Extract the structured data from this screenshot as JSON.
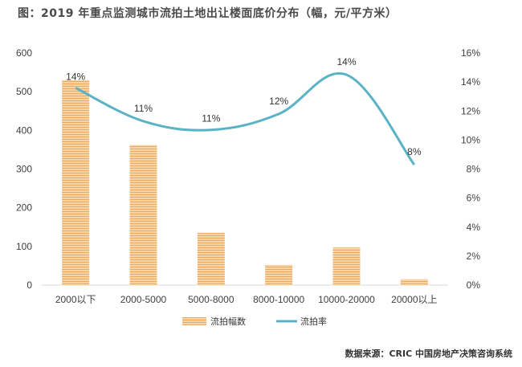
{
  "title": "图：2019 年重点监测城市流拍土地出让楼面底价分布（幅，元/平方米）",
  "source": "数据来源：CRIC 中国房地产决策咨询系统",
  "colors": {
    "bar": "#f5c58d",
    "bar_stripe": "#e0a25c",
    "line": "#5ab3c4",
    "axis_text": "#404040"
  },
  "chart_data": {
    "type": "bar",
    "title": "图：2019 年重点监测城市流拍土地出让楼面底价分布（幅，元/平方米）",
    "categories": [
      "2000以下",
      "2000-5000",
      "5000-8000",
      "8000-10000",
      "10000-20000",
      "20000以上"
    ],
    "series": [
      {
        "name": "流拍幅数",
        "type": "bar",
        "axis": "left",
        "values": [
          530,
          362,
          135,
          52,
          97,
          15
        ]
      },
      {
        "name": "流拍率",
        "type": "line",
        "axis": "right",
        "values": [
          0.136,
          0.113,
          0.107,
          0.118,
          0.145,
          0.083
        ]
      }
    ],
    "data_labels": [
      "14%",
      "11%",
      "11%",
      "12%",
      "14%",
      "8%"
    ],
    "ylim_left": [
      0,
      600
    ],
    "yticks_left": [
      "0",
      "100",
      "200",
      "300",
      "400",
      "500",
      "600"
    ],
    "ylim_right": [
      0,
      0.16
    ],
    "yticks_right": [
      "0%",
      "2%",
      "4%",
      "6%",
      "8%",
      "10%",
      "12%",
      "14%",
      "16%"
    ],
    "grid": false,
    "legend_position": "bottom"
  }
}
